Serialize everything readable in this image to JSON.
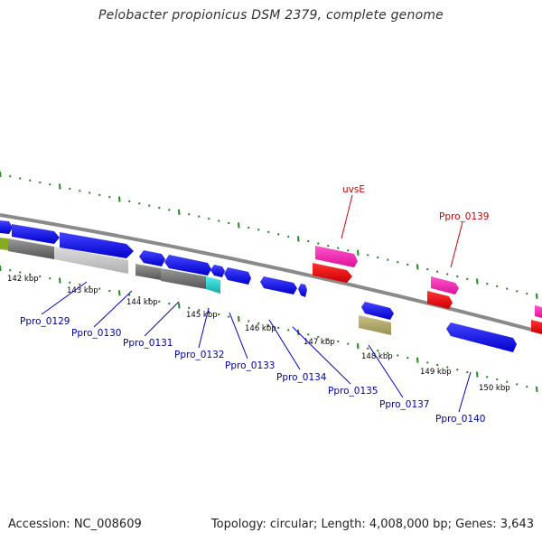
{
  "title": "Pelobacter propionicus DSM 2379, complete genome",
  "footer": {
    "accession": "Accession: NC_008609",
    "topology": "Topology: circular; Length: 4,008,000 bp; Genes: 3,643"
  },
  "scale_labels": [
    "142 kbp",
    "143 kbp",
    "144 kbp",
    "145 kbp",
    "146 kbp",
    "147 kbp",
    "148 kbp",
    "149 kbp",
    "150 kbp"
  ],
  "gene_labels": {
    "ppro_0129": "Ppro_0129",
    "ppro_0130": "Ppro_0130",
    "ppro_0131": "Ppro_0131",
    "ppro_0132": "Ppro_0132",
    "ppro_0133": "Ppro_0133",
    "ppro_0134": "Ppro_0134",
    "ppro_0135": "Ppro_0135",
    "ppro_0137": "Ppro_0137",
    "ppro_0140": "Ppro_0140",
    "uvsE": "uvsE",
    "ppro_0139": "Ppro_0139"
  },
  "colors": {
    "backbone": "#888888",
    "tick": "#228822",
    "cds_forward": "#0000ee",
    "cds_highlight_red": "#ee0000",
    "cds_highlight_pink": "#ee22aa",
    "rna_grey": "#777777",
    "cyan": "#22cccc",
    "olive": "#aaa266",
    "light_grey": "#c8c8c8",
    "label_blue": "#0000aa",
    "label_red": "#cc0000"
  }
}
